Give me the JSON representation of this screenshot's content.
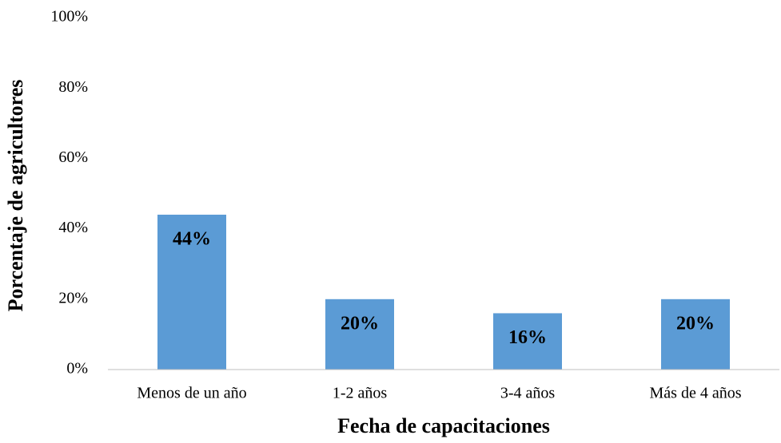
{
  "chart_data": {
    "type": "bar",
    "categories": [
      "Menos de un año",
      "1-2 años",
      "3-4 años",
      "Más de 4 años"
    ],
    "values": [
      44,
      20,
      16,
      20
    ],
    "value_labels": [
      "44%",
      "20%",
      "16%",
      "20%"
    ],
    "color": "#5b9bd5",
    "xlabel": "Fecha de capacitaciones",
    "ylabel": "Porcentaje de agricultores",
    "ylim": [
      0,
      100
    ],
    "yticks": [
      {
        "value": 0,
        "label": "0%"
      },
      {
        "value": 20,
        "label": "20%"
      },
      {
        "value": 40,
        "label": "40%"
      },
      {
        "value": 60,
        "label": "60%"
      },
      {
        "value": 80,
        "label": "80%"
      },
      {
        "value": 100,
        "label": "100%"
      }
    ],
    "grid": false
  }
}
